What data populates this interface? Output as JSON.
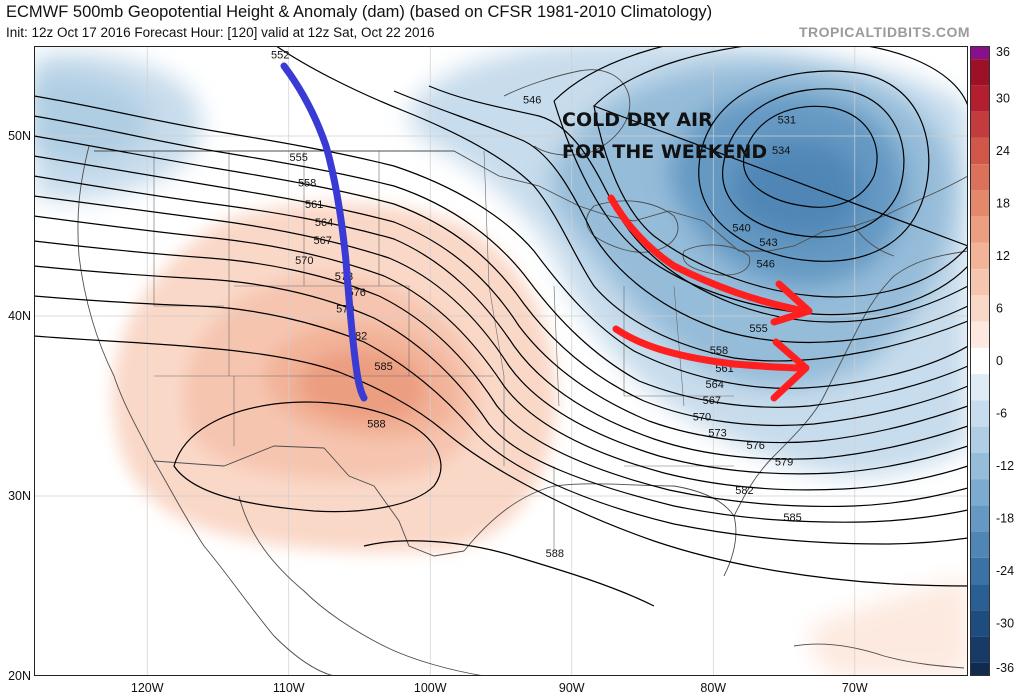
{
  "header": {
    "title": "ECMWF 500mb Geopotential Height & Anomaly (dam) (based on CFSR 1981-2010 Climatology)",
    "subtitle": "Init: 12z Oct 17 2016   Forecast Hour: [120]   valid at 12z Sat, Oct 22 2016",
    "credit": "TROPICALTIDBITS.COM"
  },
  "map": {
    "region": "North America",
    "lon_range": [
      -128,
      -62
    ],
    "lat_range": [
      20,
      55
    ],
    "latitude_labels": [
      "20N",
      "30N",
      "40N",
      "50N"
    ],
    "longitude_labels": [
      "120W",
      "110W",
      "100W",
      "90W",
      "80W",
      "70W"
    ],
    "colors": {
      "ridge_anomaly": "#f4b294",
      "trough_anomaly": "#6da2cf",
      "contour": "#000000",
      "border": "#555555",
      "arrow_red": "#ff1f1f",
      "arrow_blue": "#3a3ad4"
    },
    "contour_labels": [
      {
        "text": "531",
        "lon": -74.8,
        "lat": 50.7
      },
      {
        "text": "534",
        "lon": -75.2,
        "lat": 49.0
      },
      {
        "text": "540",
        "lon": -78.0,
        "lat": 44.7
      },
      {
        "text": "543",
        "lon": -76.1,
        "lat": 43.9
      },
      {
        "text": "546",
        "lon": -76.3,
        "lat": 42.7
      },
      {
        "text": "546",
        "lon": -92.8,
        "lat": 51.8
      },
      {
        "text": "555",
        "lon": -76.8,
        "lat": 39.1
      },
      {
        "text": "558",
        "lon": -79.6,
        "lat": 37.9
      },
      {
        "text": "561",
        "lon": -79.2,
        "lat": 36.9
      },
      {
        "text": "564",
        "lon": -79.9,
        "lat": 36.0
      },
      {
        "text": "567",
        "lon": -80.1,
        "lat": 35.1
      },
      {
        "text": "570",
        "lon": -80.8,
        "lat": 34.2
      },
      {
        "text": "573",
        "lon": -79.7,
        "lat": 33.3
      },
      {
        "text": "576",
        "lon": -77.0,
        "lat": 32.6
      },
      {
        "text": "579",
        "lon": -75.0,
        "lat": 31.7
      },
      {
        "text": "582",
        "lon": -77.8,
        "lat": 30.1
      },
      {
        "text": "585",
        "lon": -74.4,
        "lat": 28.6
      },
      {
        "text": "588",
        "lon": -91.2,
        "lat": 26.6
      },
      {
        "text": "588",
        "lon": -103.8,
        "lat": 33.8
      },
      {
        "text": "585",
        "lon": -103.3,
        "lat": 37.0
      },
      {
        "text": "582",
        "lon": -105.1,
        "lat": 38.7
      },
      {
        "text": "579",
        "lon": -106.0,
        "lat": 40.2
      },
      {
        "text": "576",
        "lon": -105.2,
        "lat": 41.1
      },
      {
        "text": "573",
        "lon": -106.1,
        "lat": 42.0
      },
      {
        "text": "570",
        "lon": -108.9,
        "lat": 42.9
      },
      {
        "text": "567",
        "lon": -107.6,
        "lat": 44.0
      },
      {
        "text": "564",
        "lon": -107.5,
        "lat": 45.0
      },
      {
        "text": "561",
        "lon": -108.2,
        "lat": 46.0
      },
      {
        "text": "558",
        "lon": -108.7,
        "lat": 47.2
      },
      {
        "text": "555",
        "lon": -109.3,
        "lat": 48.6
      },
      {
        "text": "552",
        "lon": -110.6,
        "lat": 54.3
      }
    ],
    "annotation": {
      "line1": "COLD DRY AIR",
      "line2": "FOR THE WEEKEND"
    }
  },
  "colorbar": {
    "labels": [
      "36",
      "30",
      "24",
      "18",
      "12",
      "6",
      "0",
      "-6",
      "-12",
      "-18",
      "-24",
      "-30",
      "-36"
    ],
    "values": [
      36,
      30,
      24,
      18,
      12,
      6,
      0,
      -6,
      -12,
      -18,
      -24,
      -30,
      -36
    ],
    "colors": {
      "36": "#8a0f8c",
      "33": "#9c1028",
      "30": "#b31f2f",
      "27": "#c33b3c",
      "24": "#d0574a",
      "21": "#db715a",
      "18": "#e4886b",
      "15": "#ec9e81",
      "12": "#f2b399",
      "9": "#f6c5b0",
      "6": "#fad8c8",
      "3": "#fde9df",
      "0": "#ffffff",
      "-3": "#dfecf5",
      "-6": "#c7dcec",
      "-9": "#afcde3",
      "-12": "#95bcd9",
      "-15": "#7dabcf",
      "-18": "#6599c3",
      "-21": "#4f86b6",
      "-24": "#3b72a6",
      "-27": "#2a5f94",
      "-30": "#1f4c7f",
      "-33": "#183a66",
      "-36": "#112a4d"
    }
  }
}
